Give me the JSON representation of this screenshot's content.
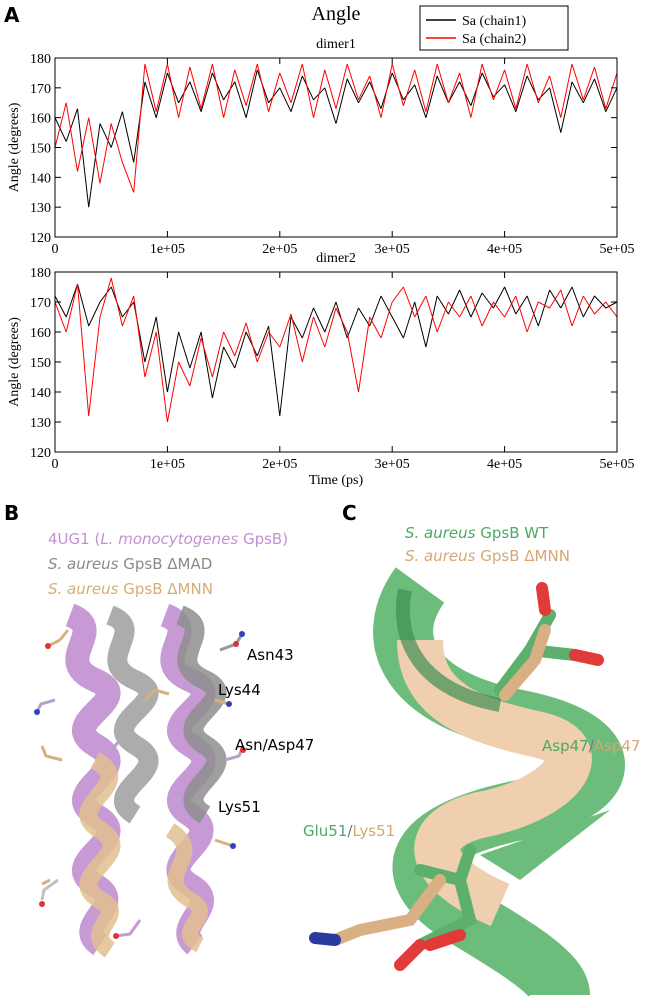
{
  "panel_labels": [
    "A",
    "B",
    "C"
  ],
  "chart_data": [
    {
      "type": "line",
      "title": "Angle",
      "subtitle": "dimer1",
      "ylabel": "Angle (degrees)",
      "legend": "top-right",
      "x": [
        0,
        10000,
        20000,
        30000,
        40000,
        50000,
        60000,
        70000,
        80000,
        90000,
        100000,
        110000,
        120000,
        130000,
        140000,
        150000,
        160000,
        170000,
        180000,
        190000,
        200000,
        210000,
        220000,
        230000,
        240000,
        250000,
        260000,
        270000,
        280000,
        290000,
        300000,
        310000,
        320000,
        330000,
        340000,
        350000,
        360000,
        370000,
        380000,
        390000,
        400000,
        410000,
        420000,
        430000,
        440000,
        450000,
        460000,
        470000,
        480000,
        490000,
        500000
      ],
      "series": [
        {
          "name": "Sa (chain1)",
          "color": "#000000",
          "values": [
            160,
            152,
            163,
            130,
            158,
            150,
            162,
            145,
            172,
            160,
            175,
            165,
            172,
            162,
            175,
            166,
            172,
            160,
            176,
            165,
            170,
            162,
            174,
            166,
            170,
            158,
            173,
            165,
            172,
            163,
            175,
            166,
            171,
            160,
            174,
            165,
            172,
            164,
            175,
            167,
            171,
            162,
            174,
            166,
            170,
            155,
            172,
            165,
            173,
            162,
            170
          ]
        },
        {
          "name": "Sa (chain2)",
          "color": "#ff0000",
          "values": [
            150,
            165,
            142,
            160,
            138,
            158,
            145,
            135,
            178,
            162,
            178,
            160,
            177,
            163,
            178,
            160,
            176,
            164,
            178,
            162,
            175,
            165,
            178,
            160,
            176,
            163,
            178,
            166,
            174,
            160,
            178,
            164,
            176,
            162,
            178,
            165,
            175,
            160,
            178,
            166,
            176,
            163,
            178,
            165,
            174,
            160,
            178,
            166,
            177,
            163,
            175
          ]
        }
      ],
      "xlim": [
        0,
        500000
      ],
      "ylim": [
        120,
        180
      ],
      "xticks": [
        0,
        {
          "value": 100000,
          "label": "1e+05"
        },
        {
          "value": 200000,
          "label": "2e+05"
        },
        {
          "value": 300000,
          "label": "3e+05"
        },
        {
          "value": 400000,
          "label": "4e+05"
        },
        {
          "value": 500000,
          "label": "5e+05"
        }
      ],
      "yticks": [
        120,
        130,
        140,
        150,
        160,
        170,
        180
      ]
    },
    {
      "type": "line",
      "subtitle": "dimer2",
      "xlabel": "Time (ps)",
      "ylabel": "Angle (degrees)",
      "x": [
        0,
        10000,
        20000,
        30000,
        40000,
        50000,
        60000,
        70000,
        80000,
        90000,
        100000,
        110000,
        120000,
        130000,
        140000,
        150000,
        160000,
        170000,
        180000,
        190000,
        200000,
        210000,
        220000,
        230000,
        240000,
        250000,
        260000,
        270000,
        280000,
        290000,
        300000,
        310000,
        320000,
        330000,
        340000,
        350000,
        360000,
        370000,
        380000,
        390000,
        400000,
        410000,
        420000,
        430000,
        440000,
        450000,
        460000,
        470000,
        480000,
        490000,
        500000
      ],
      "series": [
        {
          "color": "#000000",
          "values": [
            172,
            165,
            176,
            162,
            170,
            175,
            165,
            170,
            150,
            165,
            140,
            160,
            148,
            160,
            138,
            155,
            148,
            160,
            152,
            162,
            132,
            165,
            158,
            168,
            160,
            170,
            158,
            168,
            162,
            172,
            165,
            158,
            170,
            155,
            172,
            166,
            174,
            165,
            173,
            168,
            175,
            166,
            172,
            162,
            174,
            168,
            175,
            165,
            172,
            168,
            170
          ]
        },
        {
          "color": "#ff0000",
          "values": [
            170,
            160,
            176,
            132,
            165,
            178,
            162,
            172,
            145,
            160,
            130,
            150,
            142,
            158,
            145,
            160,
            152,
            163,
            150,
            160,
            155,
            166,
            150,
            165,
            155,
            168,
            160,
            140,
            165,
            158,
            170,
            175,
            165,
            172,
            160,
            170,
            165,
            172,
            162,
            170,
            165,
            172,
            160,
            170,
            168,
            174,
            162,
            172,
            166,
            170,
            165
          ]
        }
      ],
      "xlim": [
        0,
        500000
      ],
      "ylim": [
        120,
        180
      ],
      "xticks": [
        0,
        {
          "value": 100000,
          "label": "1e+05"
        },
        {
          "value": 200000,
          "label": "2e+05"
        },
        {
          "value": 300000,
          "label": "3e+05"
        },
        {
          "value": 400000,
          "label": "4e+05"
        },
        {
          "value": 500000,
          "label": "5e+05"
        }
      ],
      "yticks": [
        120,
        130,
        140,
        150,
        160,
        170,
        180
      ]
    }
  ],
  "panel_b": {
    "legend": [
      [
        "4UG1 (",
        "L. monocytogenes",
        " GpsB)"
      ],
      [
        "S. aureus",
        " GpsB ΔMAD"
      ],
      [
        "S. aureus",
        " GpsB ΔMNN"
      ]
    ],
    "residues": [
      "Asn43",
      "Lys44",
      "Asn/Asp47",
      "Lys51"
    ]
  },
  "panel_c": {
    "legend": [
      [
        "S. aureus",
        " GpsB WT"
      ],
      [
        "S. aureus",
        " GpsB ΔMNN"
      ]
    ],
    "residues": [
      [
        "Asp47",
        "/",
        "Asp47"
      ],
      [
        "Glu51",
        "/",
        "Lys51"
      ]
    ]
  }
}
